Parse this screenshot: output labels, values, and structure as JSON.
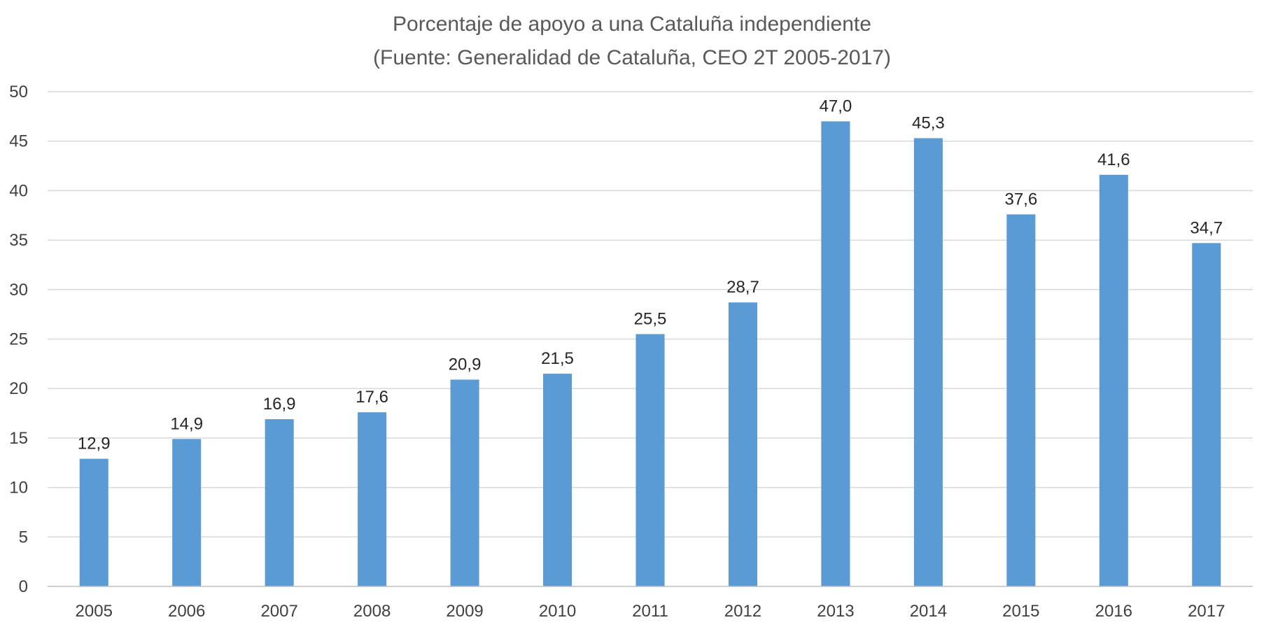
{
  "chart_data": {
    "type": "bar",
    "title": "Porcentaje de apoyo a una Cataluña independiente",
    "subtitle": "(Fuente: Generalidad de Cataluña, CEO 2T 2005-2017)",
    "xlabel": "",
    "ylabel": "",
    "categories": [
      "2005",
      "2006",
      "2007",
      "2008",
      "2009",
      "2010",
      "2011",
      "2012",
      "2013",
      "2014",
      "2015",
      "2016",
      "2017"
    ],
    "values": [
      12.9,
      14.9,
      16.9,
      17.6,
      20.9,
      21.5,
      25.5,
      28.7,
      47.0,
      45.3,
      37.6,
      41.6,
      34.7
    ],
    "data_labels": [
      "12,9",
      "14,9",
      "16,9",
      "17,6",
      "20,9",
      "21,5",
      "25,5",
      "28,7",
      "47,0",
      "45,3",
      "37,6",
      "41,6",
      "34,7"
    ],
    "ylim": [
      0,
      50
    ],
    "yticks": [
      0,
      5,
      10,
      15,
      20,
      25,
      30,
      35,
      40,
      45,
      50
    ],
    "grid": true,
    "legend": "none",
    "bar_color": "#5b9bd5",
    "grid_color": "#d9d9d9",
    "text_color": "#404040",
    "title_color": "#595959"
  }
}
